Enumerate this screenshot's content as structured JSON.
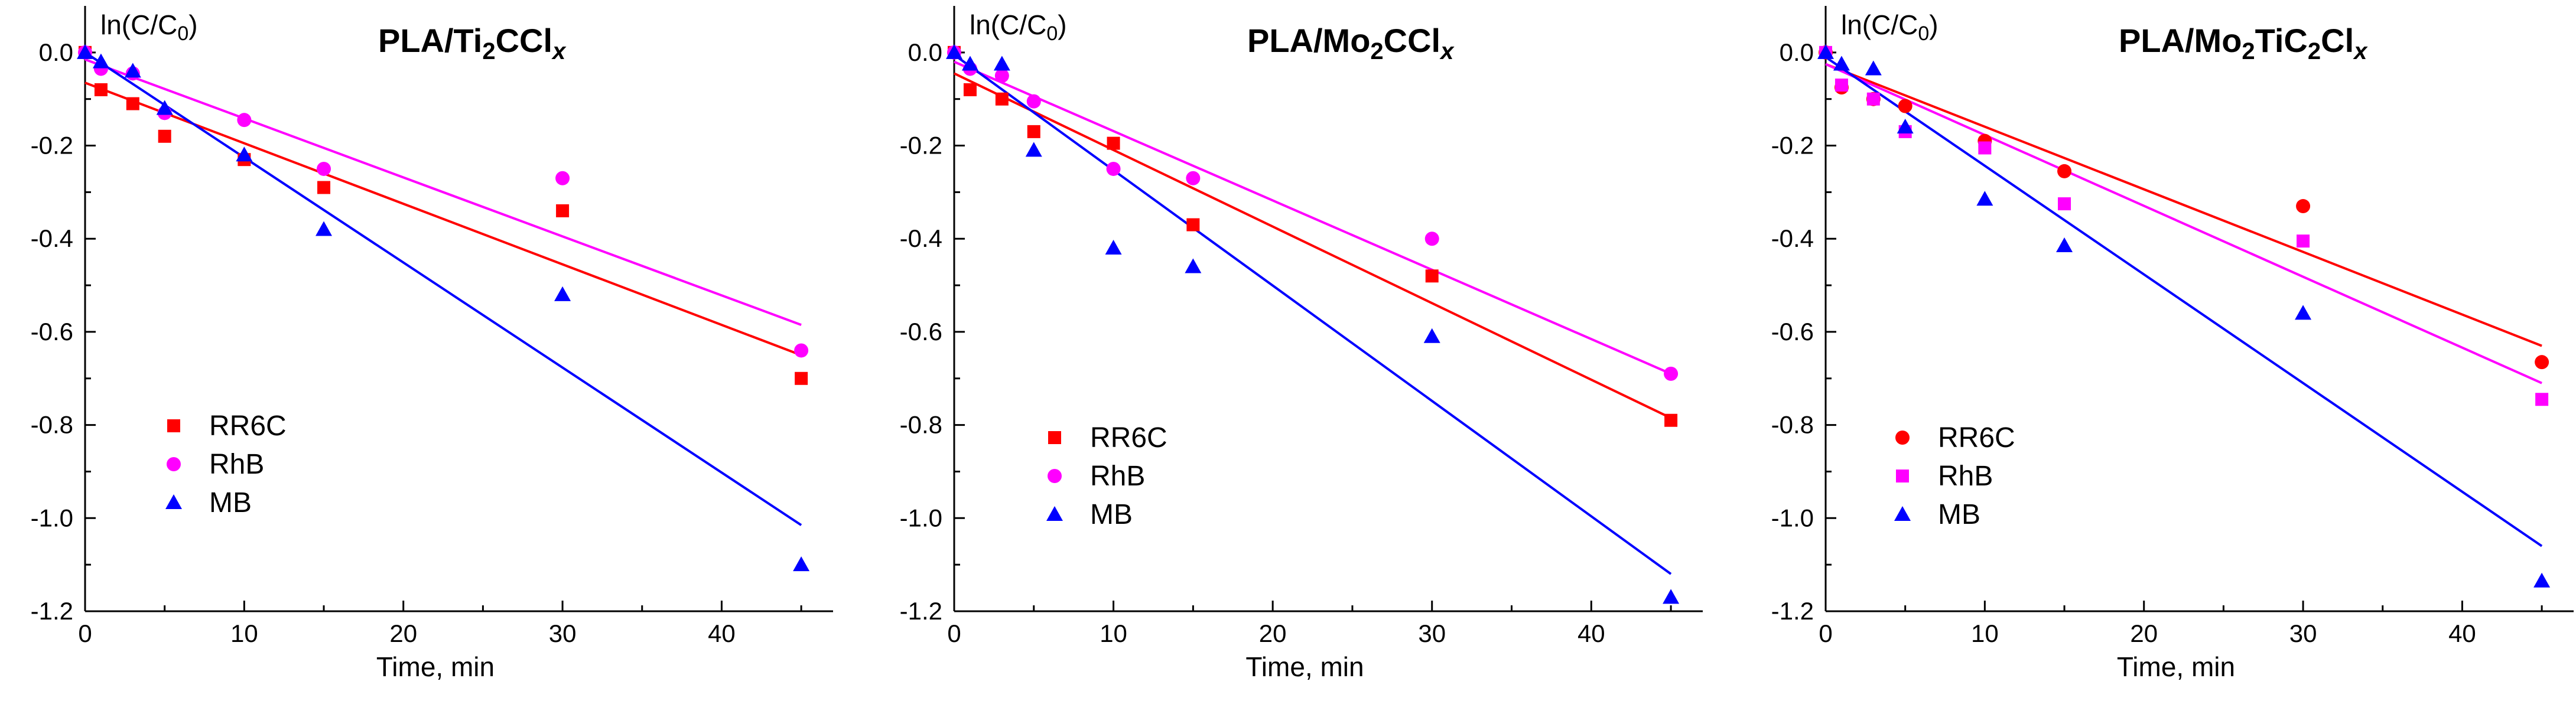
{
  "colors": {
    "RR6C": "#ff0000",
    "RhB": "#ff00ff",
    "MB": "#0000ff",
    "axis": "#000000"
  },
  "chart_data": [
    {
      "type": "scatter",
      "title": {
        "base": "PLA/Ti",
        "sub1": "2",
        "mid": "CCl",
        "italic": "x"
      },
      "ylabel": {
        "base": "ln(C/C",
        "sub": "0",
        "end": ")"
      },
      "xlabel": "Time, min",
      "xlim": [
        0,
        47
      ],
      "ylim": [
        -1.2,
        0.1
      ],
      "xticks": [
        "0",
        "10",
        "20",
        "30",
        "40"
      ],
      "yticks": [
        "0.0",
        "-0.2",
        "-0.4",
        "-0.6",
        "-0.8",
        "-1.0",
        "-1.2"
      ],
      "legend": [
        "RR6C",
        "RhB",
        "MB"
      ],
      "series": [
        {
          "name": "RR6C",
          "marker": "square",
          "x": [
            0,
            1,
            3,
            5,
            10,
            15,
            30,
            45
          ],
          "y": [
            0.0,
            -0.08,
            -0.11,
            -0.18,
            -0.23,
            -0.29,
            -0.34,
            -0.7
          ],
          "fit": {
            "x": [
              0,
              45
            ],
            "y": [
              -0.065,
              -0.65
            ]
          }
        },
        {
          "name": "RhB",
          "marker": "circle",
          "x": [
            0,
            1,
            3,
            5,
            10,
            15,
            30,
            45
          ],
          "y": [
            0.0,
            -0.035,
            -0.045,
            -0.13,
            -0.145,
            -0.25,
            -0.27,
            -0.64
          ],
          "fit": {
            "x": [
              0,
              45
            ],
            "y": [
              -0.015,
              -0.585
            ]
          }
        },
        {
          "name": "MB",
          "marker": "triangle",
          "x": [
            0,
            1,
            3,
            5,
            10,
            15,
            30,
            45
          ],
          "y": [
            0.0,
            -0.02,
            -0.04,
            -0.12,
            -0.22,
            -0.38,
            -0.52,
            -1.1
          ],
          "fit": {
            "x": [
              0,
              45
            ],
            "y": [
              0.0,
              -1.015
            ]
          }
        }
      ]
    },
    {
      "type": "scatter",
      "title": {
        "base": "PLA/Mo",
        "sub1": "2",
        "mid": "CCl",
        "italic": "x"
      },
      "ylabel": {
        "base": "ln(C/C",
        "sub": "0",
        "end": ")"
      },
      "xlabel": "Time, min",
      "xlim": [
        0,
        47
      ],
      "ylim": [
        -1.2,
        0.1
      ],
      "xticks": [
        "0",
        "10",
        "20",
        "30",
        "40"
      ],
      "yticks": [
        "0.0",
        "-0.2",
        "-0.4",
        "-0.6",
        "-0.8",
        "-1.0",
        "-1.2"
      ],
      "legend": [
        "RR6C",
        "RhB",
        "MB"
      ],
      "series": [
        {
          "name": "RR6C",
          "marker": "square",
          "x": [
            0,
            1,
            3,
            5,
            10,
            15,
            30,
            45
          ],
          "y": [
            0.0,
            -0.08,
            -0.1,
            -0.17,
            -0.195,
            -0.37,
            -0.48,
            -0.79
          ],
          "fit": {
            "x": [
              0,
              45
            ],
            "y": [
              -0.045,
              -0.785
            ]
          }
        },
        {
          "name": "RhB",
          "marker": "circle",
          "x": [
            0,
            1,
            3,
            5,
            10,
            15,
            30,
            45
          ],
          "y": [
            0.0,
            -0.035,
            -0.05,
            -0.105,
            -0.25,
            -0.27,
            -0.4,
            -0.69
          ],
          "fit": {
            "x": [
              0,
              45
            ],
            "y": [
              -0.02,
              -0.69
            ]
          }
        },
        {
          "name": "MB",
          "marker": "triangle",
          "x": [
            0,
            1,
            3,
            5,
            10,
            15,
            30,
            45
          ],
          "y": [
            0.0,
            -0.025,
            -0.025,
            -0.21,
            -0.42,
            -0.46,
            -0.61,
            -1.17
          ],
          "fit": {
            "x": [
              0,
              45
            ],
            "y": [
              -0.005,
              -1.12
            ]
          }
        }
      ]
    },
    {
      "type": "scatter",
      "title": {
        "base": "PLA/Mo",
        "sub1": "2",
        "mid": "TiC",
        "sub2": "2",
        "end": "Cl",
        "italic": "x"
      },
      "ylabel": {
        "base": "ln(C/C",
        "sub": "0",
        "end": ")"
      },
      "xlabel": "Time, min",
      "xlim": [
        0,
        47
      ],
      "ylim": [
        -1.2,
        0.1
      ],
      "xticks": [
        "0",
        "10",
        "20",
        "30",
        "40"
      ],
      "yticks": [
        "0.0",
        "-0.2",
        "-0.4",
        "-0.6",
        "-0.8",
        "-1.0",
        "-1.2"
      ],
      "legend": [
        "RR6C",
        "RhB",
        "MB"
      ],
      "series": [
        {
          "name": "RR6C",
          "marker": "circle",
          "x": [
            0,
            1,
            3,
            5,
            10,
            15,
            30,
            45
          ],
          "y": [
            0.0,
            -0.075,
            -0.1,
            -0.115,
            -0.19,
            -0.255,
            -0.33,
            -0.665
          ],
          "fit": {
            "x": [
              0,
              45
            ],
            "y": [
              -0.025,
              -0.63
            ]
          }
        },
        {
          "name": "RhB",
          "marker": "square",
          "x": [
            0,
            1,
            3,
            5,
            10,
            15,
            30,
            45
          ],
          "y": [
            0.0,
            -0.07,
            -0.1,
            -0.17,
            -0.205,
            -0.325,
            -0.405,
            -0.745
          ],
          "fit": {
            "x": [
              0,
              45
            ],
            "y": [
              -0.025,
              -0.71
            ]
          }
        },
        {
          "name": "MB",
          "marker": "triangle",
          "x": [
            0,
            1,
            3,
            5,
            10,
            15,
            30,
            45
          ],
          "y": [
            0.0,
            -0.025,
            -0.035,
            -0.16,
            -0.315,
            -0.415,
            -0.56,
            -1.135
          ],
          "fit": {
            "x": [
              0,
              45
            ],
            "y": [
              -0.01,
              -1.06
            ]
          }
        }
      ]
    }
  ]
}
